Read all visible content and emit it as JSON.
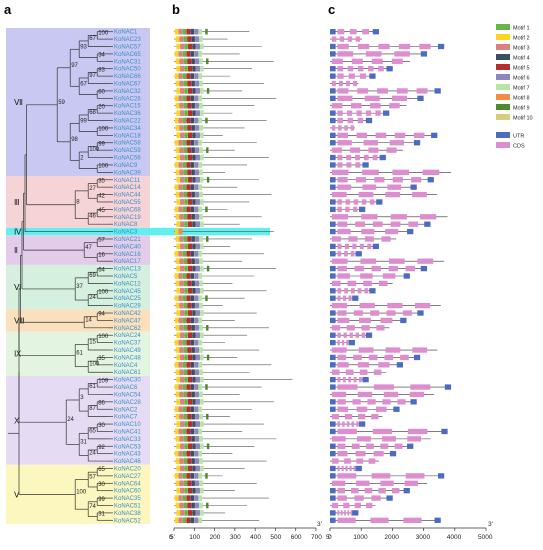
{
  "panels": {
    "a": "a",
    "b": "b",
    "c": "c"
  },
  "genes": [
    "KoNAC1",
    "KoNAC23",
    "KoNAC57",
    "KoNAC65",
    "KoNAC31",
    "KoNAC50",
    "KoNAC66",
    "KoNAC67",
    "KoNAC32",
    "KoNAC26",
    "KoNAC15",
    "KoNAC36",
    "KoNAC22",
    "KoNAC34",
    "KoNAC18",
    "KoNAC58",
    "KoNAC59",
    "KoNAC56",
    "KoNAC9",
    "KoNAC39",
    "KoNAC11",
    "KoNAC14",
    "KoNAC44",
    "KoNAC55",
    "KoNAC68",
    "KoNAC19",
    "KoNAC8",
    "KoNAC3",
    "KoNAC21",
    "KoNAC40",
    "KoNAC16",
    "KoNAC17",
    "KoNAC13",
    "KoNAC5",
    "KoNAC12",
    "KoNAC45",
    "KoNAC25",
    "KoNAC29",
    "KoNAC42",
    "KoNAC47",
    "KoNAC62",
    "KoNAC24",
    "KoNAC37",
    "KoNAC49",
    "KoNAC48",
    "KoNAC4",
    "KoNAC61",
    "KoNAC30",
    "KoNAC6",
    "KoNAC54",
    "KoNAC28",
    "KoNAC2",
    "KoNAC7",
    "KoNAC10",
    "KoNAC41",
    "KoNAC33",
    "KoNAC53",
    "KoNAC43",
    "KoNAC46",
    "KoNAC20",
    "KoNAC27",
    "KoNAC64",
    "KoNAC60",
    "KoNAC35",
    "KoNAC51",
    "KoNAC38",
    "KoNAC52"
  ],
  "clades": [
    {
      "label": "Ⅶ",
      "start": 0,
      "end": 19,
      "color": "#c9c8f2"
    },
    {
      "label": "Ⅲ",
      "start": 20,
      "end": 26,
      "color": "#f6d3d6"
    },
    {
      "label": "Ⅳ",
      "start": 27,
      "end": 27,
      "color": "#5ff0ef"
    },
    {
      "label": "Ⅱ",
      "start": 28,
      "end": 31,
      "color": "#e3cbea"
    },
    {
      "label": "Ⅵ",
      "start": 32,
      "end": 37,
      "color": "#d5f0de"
    },
    {
      "label": "Ⅷ",
      "start": 38,
      "end": 40,
      "color": "#fbe0bd"
    },
    {
      "label": "Ⅸ",
      "start": 41,
      "end": 46,
      "color": "#e3f5e0"
    },
    {
      "label": "Ⅹ",
      "start": 47,
      "end": 58,
      "color": "#e5dcf3"
    },
    {
      "label": "Ⅴ",
      "start": 59,
      "end": 66,
      "color": "#fbf7bf"
    }
  ],
  "bootstrap_labels": [
    "100",
    "67",
    "34",
    "93",
    "83",
    "97",
    "60",
    "67",
    "97",
    "20",
    "68",
    "100",
    "99",
    "99",
    "100",
    "100",
    "2",
    "98",
    "59",
    "35",
    "42",
    "27",
    "45",
    "46",
    "8",
    "57",
    "16",
    "47",
    "64",
    "69",
    "100",
    "24",
    "37",
    "94",
    "14",
    "100",
    "15",
    "35",
    "100",
    "61",
    "109",
    "61",
    "86",
    "87",
    "3",
    "30",
    "65",
    "92",
    "24",
    "31",
    "24",
    "65",
    "30",
    "57",
    "99",
    "31",
    "74",
    "100",
    "25",
    "35",
    "57",
    "94",
    "42",
    "36",
    "44"
  ],
  "motif_axis": {
    "ticks": [
      "0",
      "100",
      "200",
      "300",
      "400",
      "500",
      "600",
      "700"
    ],
    "max": 700,
    "start_label": "5'",
    "end_label": "3'"
  },
  "gene_axis": {
    "ticks": [
      "0",
      "1000",
      "2000",
      "3000",
      "4000",
      "5000"
    ],
    "max": 5000,
    "start_label": "5'",
    "end_label": "3'"
  },
  "motif_legend": [
    {
      "label": "Motif 1",
      "color": "#66b545"
    },
    {
      "label": "Motif 2",
      "color": "#fcd51e"
    },
    {
      "label": "Motif 3",
      "color": "#d9817f"
    },
    {
      "label": "Motif 4",
      "color": "#3c4e67"
    },
    {
      "label": "Motif 5",
      "color": "#b5302b"
    },
    {
      "label": "Motif 6",
      "color": "#8e86c0"
    },
    {
      "label": "Motif 7",
      "color": "#b6e6a3"
    },
    {
      "label": "Motif 8",
      "color": "#f28e43"
    },
    {
      "label": "Motif 9",
      "color": "#4f8a2a"
    },
    {
      "label": "Motif 10",
      "color": "#d9cd7d"
    }
  ],
  "structure_legend": [
    {
      "label": "UTR",
      "color": "#4b6cc1"
    },
    {
      "label": "CDS",
      "color": "#dd8ed0"
    }
  ]
}
